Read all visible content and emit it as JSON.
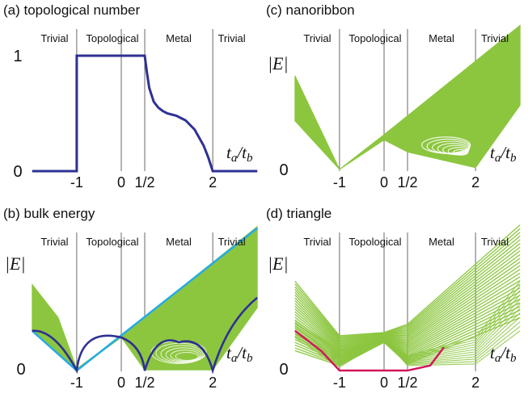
{
  "figure": {
    "panels": [
      {
        "id": "a",
        "title": "(a) topological number",
        "regions": [
          "Trivial",
          "Topological",
          "Metal",
          "Trivial"
        ],
        "y_ticks": [
          "1",
          "0"
        ],
        "x_ticks": [
          "-1",
          "0",
          "1/2",
          "2"
        ],
        "axis_label": "ta/tb",
        "axis_label_main": "t",
        "axis_label_sub_a": "a",
        "axis_label_sep": "/t",
        "axis_label_sub_b": "b",
        "ylabel": ""
      },
      {
        "id": "c",
        "title": "(c) nanoribbon",
        "regions": [
          "Trivial",
          "Topological",
          "Metal",
          "Trivial"
        ],
        "y_ticks": [
          "0"
        ],
        "x_ticks": [
          "-1",
          "0",
          "1/2",
          "2"
        ],
        "axis_label": "ta/tb",
        "axis_label_main": "t",
        "axis_label_sub_a": "a",
        "axis_label_sep": "/t",
        "axis_label_sub_b": "b",
        "ylabel": "|E|"
      },
      {
        "id": "b",
        "title": "(b) bulk  energy",
        "regions": [
          "Trivial",
          "Topological",
          "Metal",
          "Trivial"
        ],
        "y_ticks": [
          "0"
        ],
        "x_ticks": [
          "-1",
          "0",
          "1/2",
          "2"
        ],
        "axis_label": "ta/tb",
        "axis_label_main": "t",
        "axis_label_sub_a": "a",
        "axis_label_sep": "/t",
        "axis_label_sub_b": "b",
        "ylabel": "|E|"
      },
      {
        "id": "d",
        "title": "(d) triangle",
        "regions": [
          "Trivial",
          "Topological",
          "Metal",
          "Trivial"
        ],
        "y_ticks": [
          "0"
        ],
        "x_ticks": [
          "-1",
          "0",
          "1/2",
          "2"
        ],
        "axis_label": "ta/tb",
        "axis_label_main": "t",
        "axis_label_sub_a": "a",
        "axis_label_sep": "/t",
        "axis_label_sub_b": "b",
        "ylabel": "|E|"
      }
    ],
    "colors": {
      "bands": "#8cc63f",
      "bulk_edge": "#29abe2",
      "curve": "#2e3192",
      "corner_state": "#d4145a",
      "axis": "#000000"
    }
  },
  "chart_data": [
    {
      "type": "line",
      "title": "(a) topological number",
      "xlabel": "ta/tb",
      "ylabel": "",
      "x_tick_values": [
        -1,
        0,
        0.5,
        2
      ],
      "y_tick_values": [
        0,
        1
      ],
      "phase_boundaries": [
        -1,
        0.5,
        2
      ],
      "series": [
        {
          "x": [
            -2.2,
            -1,
            -1,
            0.5,
            0.55,
            0.6,
            0.7,
            0.8,
            0.9,
            1.0,
            1.2,
            1.4,
            1.6,
            1.8,
            1.9,
            1.95,
            2,
            3.3
          ],
          "y": [
            0,
            0,
            1,
            1,
            0.85,
            0.72,
            0.6,
            0.55,
            0.52,
            0.5,
            0.48,
            0.44,
            0.36,
            0.22,
            0.12,
            0.06,
            0,
            0
          ]
        }
      ]
    },
    {
      "type": "area",
      "title": "(c) nanoribbon",
      "xlabel": "ta/tb",
      "ylabel": "|E|",
      "x_tick_values": [
        -1,
        0,
        0.5,
        2
      ],
      "phase_boundaries": [
        -1,
        0.5,
        2
      ],
      "bands": "envelope: |E| between |ta+tb|-range and ta+tb; minimum 0 at ta/tb = -1; narrows near ta/tb = 0"
    },
    {
      "type": "line",
      "title": "(b) bulk  energy",
      "xlabel": "ta/tb",
      "ylabel": "|E|",
      "x_tick_values": [
        -1,
        0,
        0.5,
        2
      ],
      "phase_boundaries": [
        -1,
        0.5,
        2
      ],
      "series": [
        {
          "name": "",
          "x": [
            -2.2,
            -1,
            3.3
          ],
          "y": [
            1.2,
            0,
            4.3
          ]
        },
        {
          "name": "",
          "x": [
            -2.2,
            -1,
            0,
            0.5,
            2,
            3.3
          ],
          "y": [
            1.2,
            0,
            1.0,
            0,
            0,
            2.2
          ]
        }
      ]
    },
    {
      "type": "area",
      "title": "(d) triangle",
      "xlabel": "ta/tb",
      "ylabel": "|E|",
      "x_tick_values": [
        -1,
        0,
        0.5,
        2
      ],
      "phase_boundaries": [
        -1,
        0.5,
        2
      ],
      "series": [
        {
          "name": "",
          "x": [
            -2.2,
            -1.5,
            -1,
            0,
            0.5,
            1.0,
            1.3
          ],
          "y": [
            1.2,
            0.6,
            0.0,
            0.0,
            0.0,
            0.15,
            0.7
          ]
        }
      ]
    }
  ]
}
